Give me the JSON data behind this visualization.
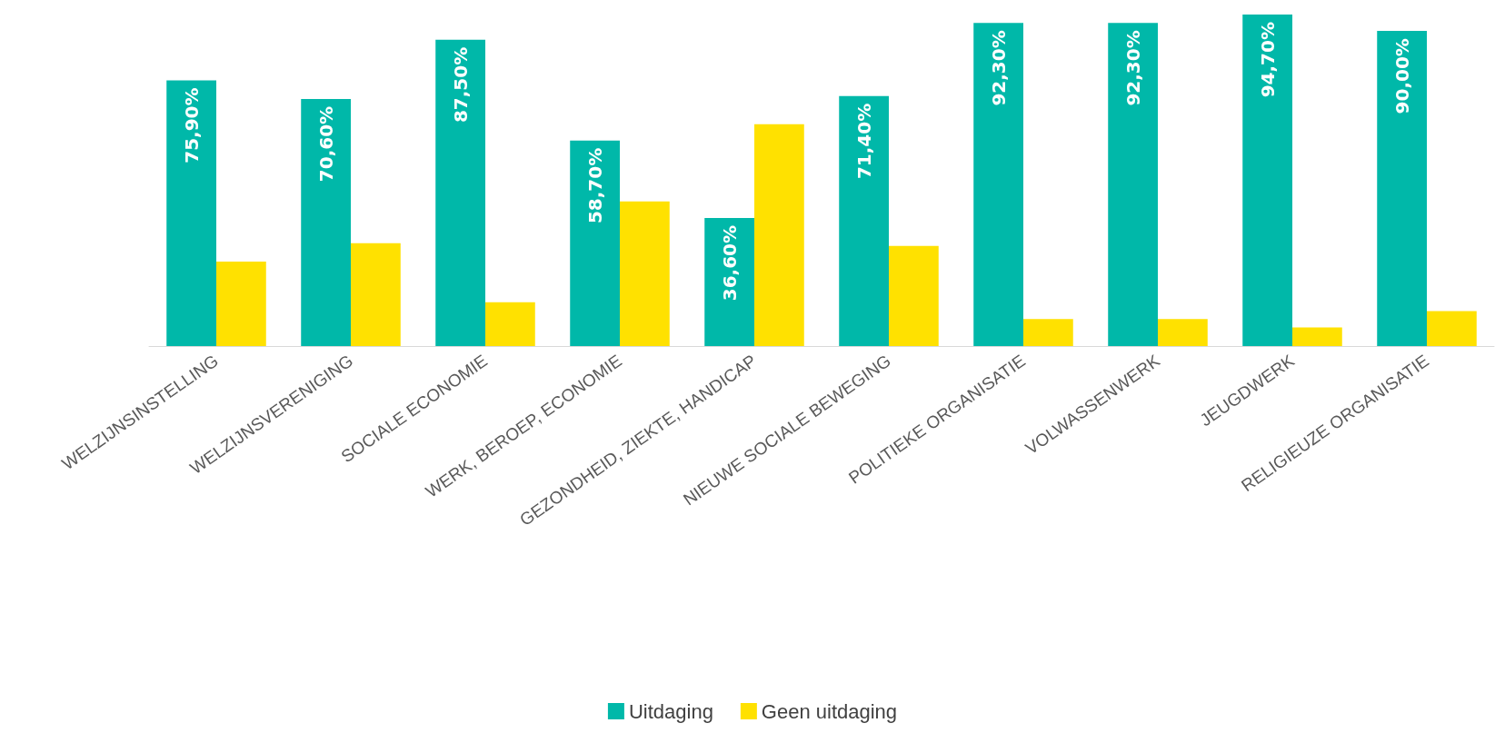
{
  "chart_data": {
    "type": "bar",
    "categories": [
      "WELZIJNSINSTELLING",
      "WELZIJNSVERENIGING",
      "SOCIALE ECONOMIE",
      "WERK, BEROEP, ECONOMIE",
      "GEZONDHEID, ZIEKTE, HANDICAP",
      "NIEUWE SOCIALE BEWEGING",
      "POLITIEKE ORGANISATIE",
      "VOLWASSENWERK",
      "JEUGDWERK",
      "RELIGIEUZE ORGANISATIE"
    ],
    "series": [
      {
        "name": "Uitdaging",
        "color": "#00b8a9",
        "values": [
          75.9,
          70.6,
          87.5,
          58.7,
          36.6,
          71.4,
          92.3,
          92.3,
          94.7,
          90.0
        ],
        "value_labels": [
          "75,90%",
          "70,60%",
          "87,50%",
          "58,70%",
          "36,60%",
          "71,40%",
          "92,30%",
          "92,30%",
          "94,70%",
          "90,00%"
        ]
      },
      {
        "name": "Geen uitdaging",
        "color": "#ffe100",
        "values": [
          24.1,
          29.4,
          12.5,
          41.3,
          63.4,
          28.6,
          7.7,
          7.7,
          5.3,
          10.0
        ]
      }
    ],
    "legend": "bottom",
    "grid": false
  }
}
